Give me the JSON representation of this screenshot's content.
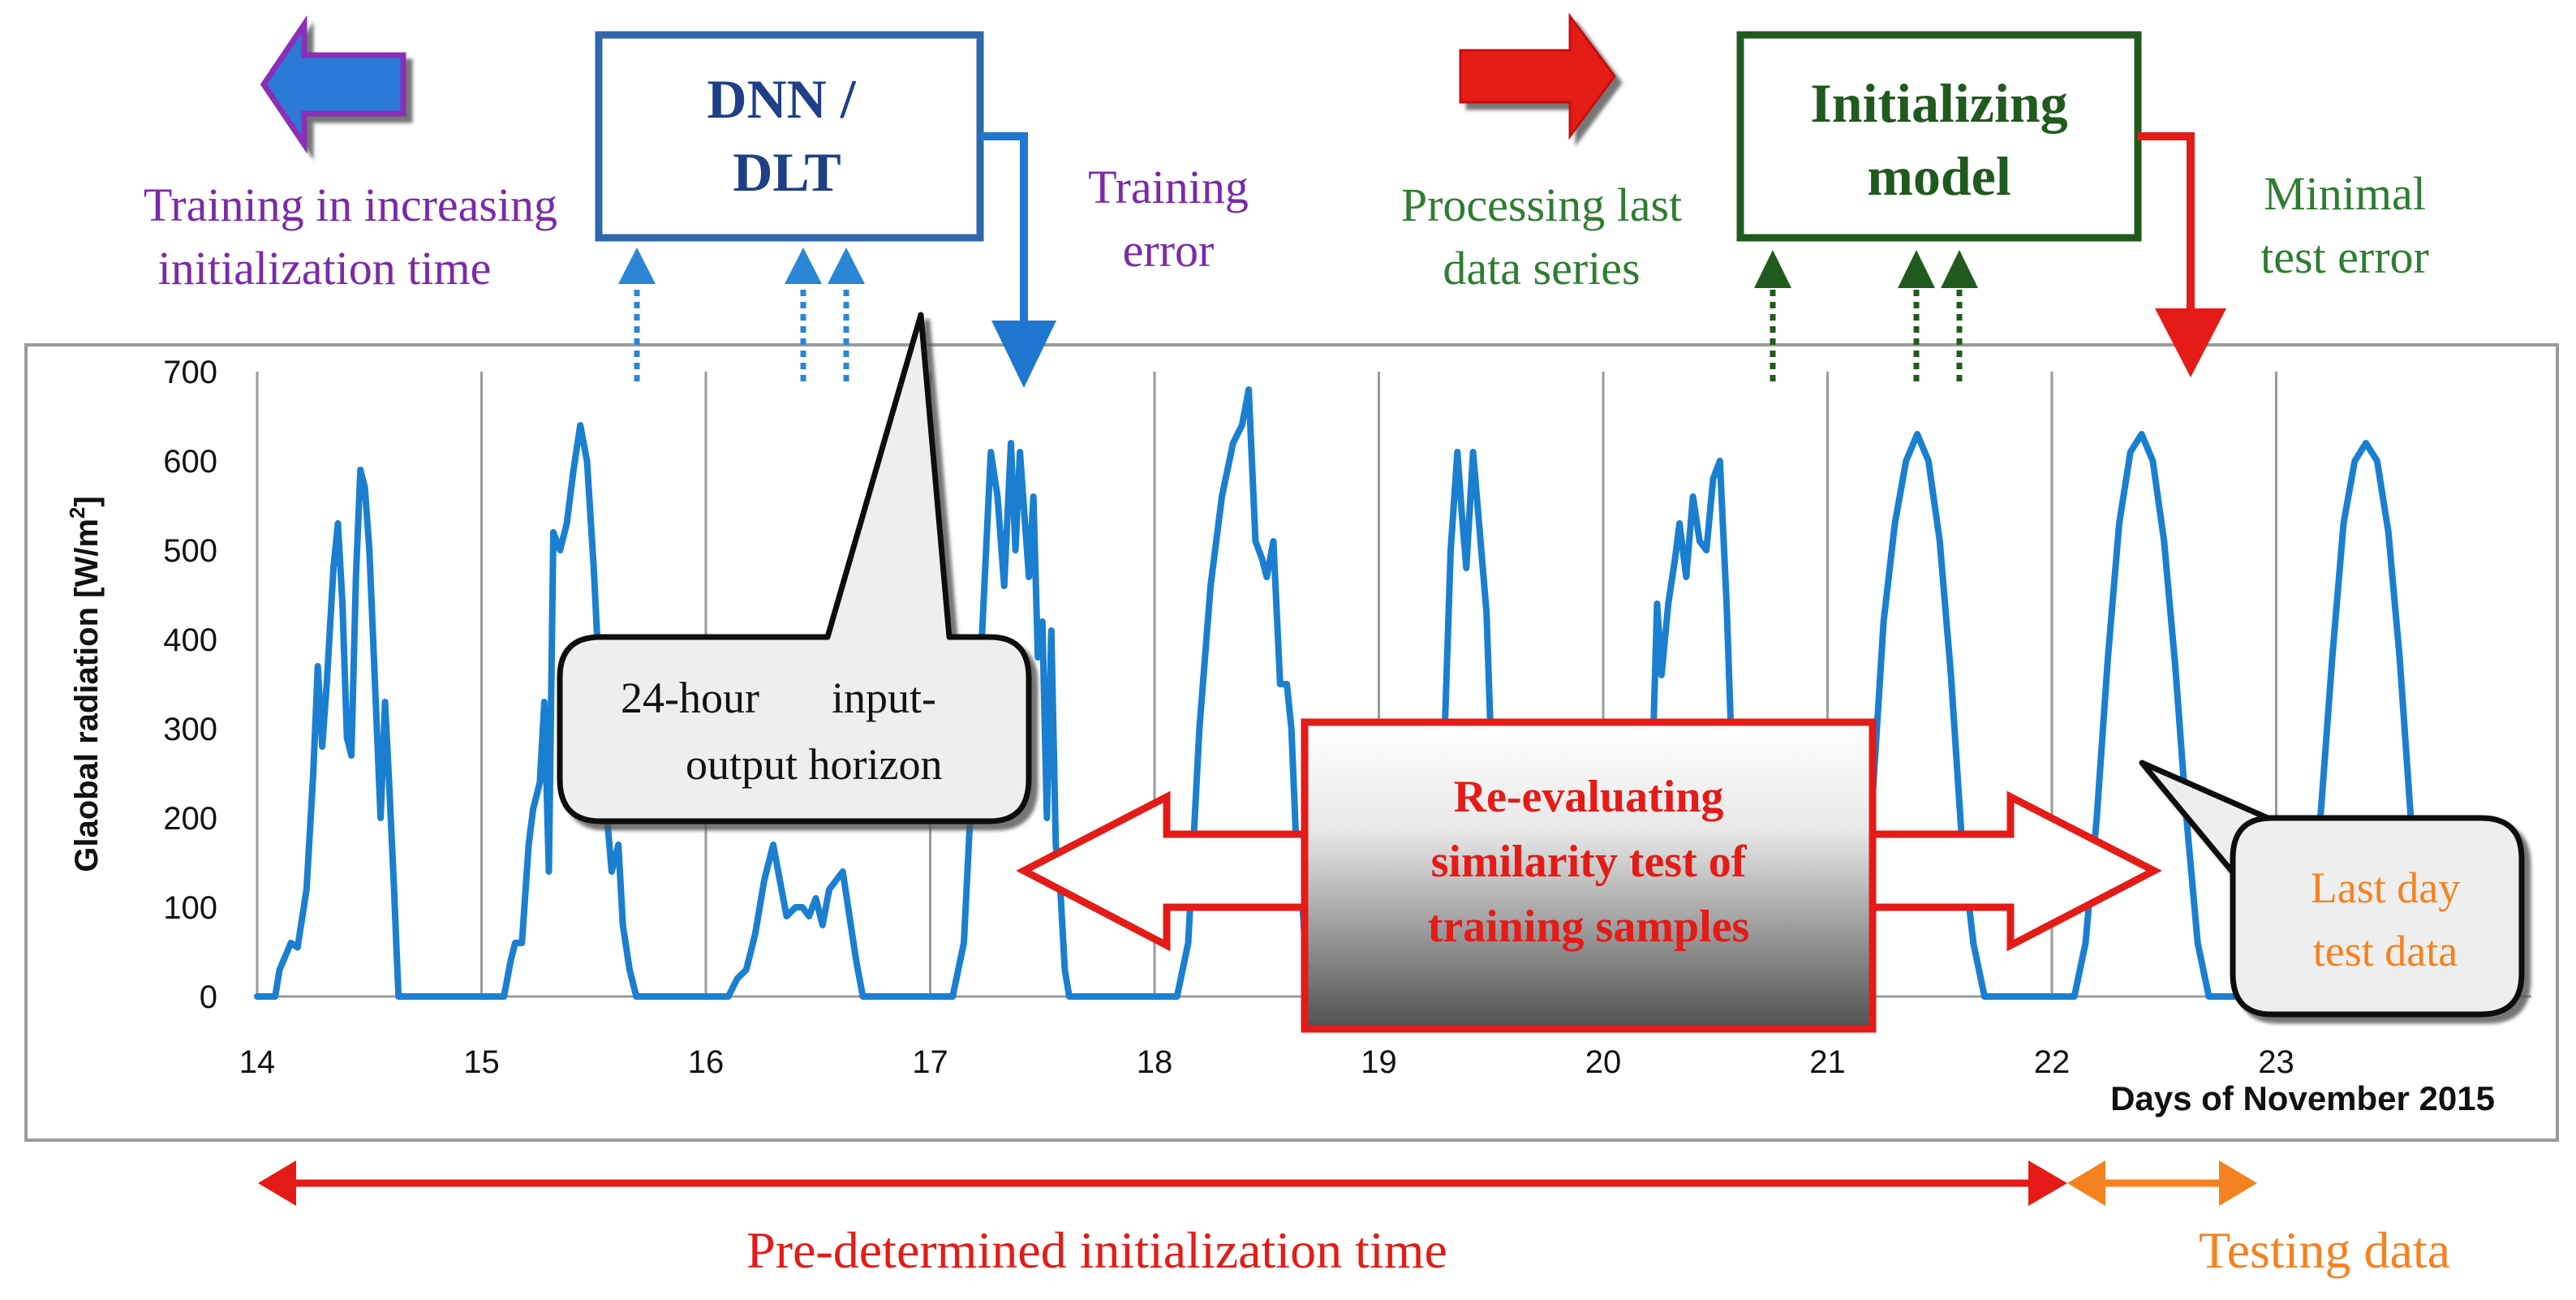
{
  "colors": {
    "series": "#1a7fd0",
    "navy": "#1f3f86",
    "boxBlue": "#2f67ab",
    "purple": "#7a2aa8",
    "green": "#2e7d32",
    "darkGreen": "#215a1e",
    "red": "#e41b17",
    "orange": "#f58220",
    "grid": "#9a9a9a"
  },
  "legend_left": {
    "label_line1": "Training in increasing",
    "label_line2": "initialization time"
  },
  "box_dnn": {
    "line1": "DNN /",
    "line2": "DLT"
  },
  "training_error": {
    "line1": "Training",
    "line2": "error"
  },
  "processing_last": {
    "line1": "Processing last",
    "line2": "data series"
  },
  "box_init": {
    "line1": "Initializing",
    "line2": "model"
  },
  "minimal_error": {
    "line1": "Minimal",
    "line2": "test error"
  },
  "callout_horizon": {
    "line1_a": "24-hour",
    "line1_b": "input-",
    "line2": "output horizon"
  },
  "reeval_box": {
    "line1": "Re-evaluating",
    "line2": "similarity test of",
    "line3": "training samples"
  },
  "callout_last_day": {
    "line1": "Last day",
    "line2": "test data"
  },
  "bottom": {
    "predetermined": "Pre-determined initialization time",
    "testing": "Testing data"
  },
  "chart_data": {
    "type": "line",
    "title": "",
    "xlabel": "Days of November 2015",
    "ylabel": "Glaobal radiation  [W/m²]",
    "ylabel_main": "Glaobal radiation  [W/m",
    "ylabel_sup": "2",
    "ylabel_end": "]",
    "ylim": [
      0,
      700
    ],
    "xlim": [
      14,
      23.9
    ],
    "yticks": [
      "0",
      "100",
      "200",
      "300",
      "400",
      "500",
      "600",
      "700"
    ],
    "xticks": [
      "14",
      "15",
      "16",
      "17",
      "18",
      "19",
      "20",
      "21",
      "22",
      "23"
    ],
    "series": [
      {
        "name": "Global radiation",
        "x": [
          14.0,
          14.08,
          14.1,
          14.15,
          14.18,
          14.22,
          14.25,
          14.27,
          14.29,
          14.31,
          14.34,
          14.36,
          14.38,
          14.4,
          14.42,
          14.44,
          14.46,
          14.48,
          14.5,
          14.52,
          14.55,
          14.57,
          14.59,
          14.61,
          14.62,
          14.63,
          14.65,
          14.67,
          14.69,
          14.72,
          14.75,
          14.78,
          14.85,
          15.0,
          15.1,
          15.13,
          15.15,
          15.18,
          15.21,
          15.23,
          15.26,
          15.28,
          15.3,
          15.32,
          15.35,
          15.38,
          15.41,
          15.44,
          15.47,
          15.5,
          15.53,
          15.56,
          15.58,
          15.61,
          15.63,
          15.66,
          15.69,
          15.72,
          15.76,
          15.8,
          15.85,
          16.0,
          16.1,
          16.14,
          16.18,
          16.22,
          16.26,
          16.3,
          16.33,
          16.36,
          16.4,
          16.43,
          16.46,
          16.49,
          16.52,
          16.55,
          16.58,
          16.61,
          16.64,
          16.67,
          16.7,
          16.73,
          16.77,
          16.8,
          16.85,
          17.0,
          17.1,
          17.15,
          17.19,
          17.23,
          17.27,
          17.3,
          17.33,
          17.36,
          17.38,
          17.4,
          17.42,
          17.44,
          17.46,
          17.48,
          17.5,
          17.52,
          17.54,
          17.56,
          17.58,
          17.6,
          17.62,
          17.64,
          17.67,
          17.7,
          17.73,
          17.76,
          17.8,
          17.85,
          18.0,
          18.1,
          18.15,
          18.2,
          18.25,
          18.3,
          18.35,
          18.39,
          18.42,
          18.45,
          18.48,
          18.5,
          18.53,
          18.56,
          18.59,
          18.61,
          18.63,
          18.65,
          18.67,
          18.7,
          18.73,
          18.76,
          18.8,
          18.85,
          19.0,
          19.2,
          19.25,
          19.29,
          19.32,
          19.35,
          19.37,
          19.39,
          19.42,
          19.45,
          19.48,
          19.5,
          19.53,
          19.56,
          19.59,
          19.62,
          19.65,
          19.7,
          19.75,
          20.0,
          20.18,
          20.21,
          20.24,
          20.26,
          20.29,
          20.32,
          20.34,
          20.37,
          20.4,
          20.43,
          20.46,
          20.49,
          20.52,
          20.55,
          20.58,
          20.6,
          20.63,
          20.66,
          20.7,
          20.75,
          20.8,
          21.0,
          21.1,
          21.15,
          21.2,
          21.25,
          21.3,
          21.35,
          21.4,
          21.45,
          21.5,
          21.55,
          21.6,
          21.65,
          21.7,
          21.75,
          21.8,
          21.85,
          22.0,
          22.1,
          22.15,
          22.2,
          22.25,
          22.3,
          22.35,
          22.4,
          22.45,
          22.5,
          22.55,
          22.6,
          22.65,
          22.7,
          22.75,
          22.8,
          22.85,
          23.0,
          23.1,
          23.15,
          23.2,
          23.25,
          23.3,
          23.35,
          23.4,
          23.45,
          23.5,
          23.55,
          23.6,
          23.65,
          23.7,
          23.75,
          23.8,
          23.85
        ],
        "y": [
          0,
          0,
          30,
          60,
          55,
          120,
          250,
          370,
          280,
          350,
          480,
          530,
          440,
          290,
          270,
          470,
          590,
          570,
          500,
          380,
          200,
          330,
          230,
          120,
          60,
          0,
          0,
          0,
          0,
          0,
          0,
          0,
          0,
          0,
          0,
          40,
          60,
          60,
          170,
          210,
          240,
          330,
          140,
          520,
          500,
          530,
          590,
          640,
          600,
          480,
          330,
          200,
          140,
          170,
          80,
          30,
          0,
          0,
          0,
          0,
          0,
          0,
          0,
          20,
          30,
          70,
          130,
          170,
          130,
          90,
          100,
          100,
          90,
          110,
          80,
          120,
          130,
          140,
          90,
          40,
          0,
          0,
          0,
          0,
          0,
          0,
          0,
          60,
          260,
          400,
          610,
          560,
          460,
          620,
          500,
          610,
          540,
          470,
          560,
          380,
          420,
          200,
          410,
          170,
          120,
          30,
          0,
          0,
          0,
          0,
          0,
          0,
          0,
          0,
          0,
          0,
          60,
          300,
          460,
          560,
          620,
          640,
          680,
          510,
          490,
          470,
          510,
          350,
          350,
          300,
          180,
          140,
          60,
          0,
          0,
          0,
          0,
          0,
          0,
          0,
          60,
          270,
          500,
          610,
          540,
          480,
          610,
          520,
          430,
          280,
          230,
          160,
          100,
          0,
          0,
          0,
          0,
          0,
          0,
          180,
          440,
          360,
          440,
          490,
          530,
          470,
          560,
          510,
          500,
          580,
          600,
          440,
          220,
          120,
          60,
          0,
          0,
          0,
          0,
          0,
          0,
          60,
          220,
          420,
          530,
          600,
          630,
          600,
          510,
          360,
          170,
          60,
          0,
          0,
          0,
          0,
          0,
          0,
          60,
          200,
          380,
          530,
          610,
          630,
          600,
          510,
          370,
          200,
          60,
          0,
          0,
          0,
          0,
          0,
          0,
          60,
          210,
          380,
          530,
          600,
          620,
          600,
          520,
          380,
          200,
          60,
          0,
          0,
          0,
          0
        ]
      }
    ]
  }
}
